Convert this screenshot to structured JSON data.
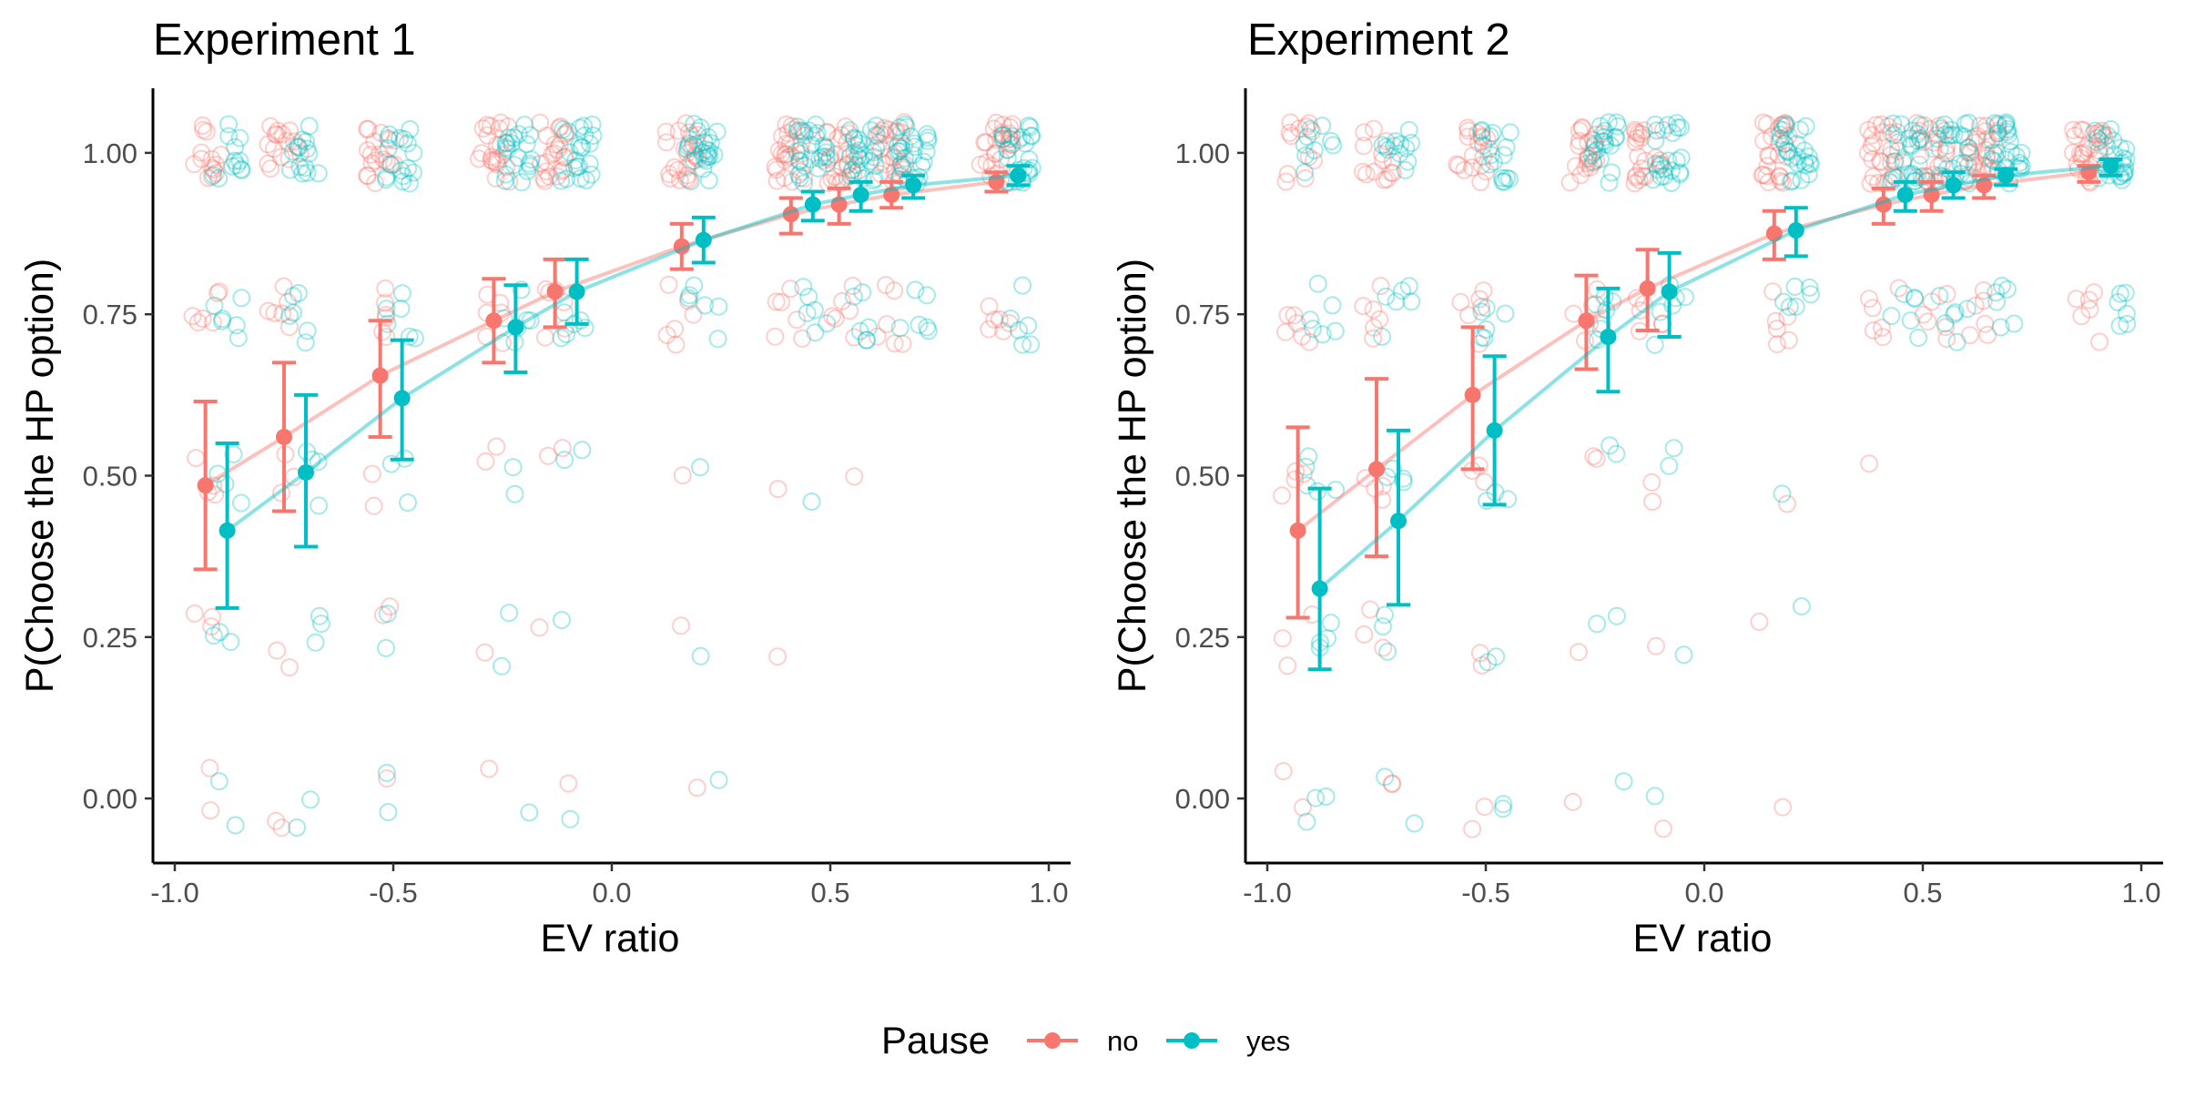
{
  "legend": {
    "title": "Pause",
    "items": [
      {
        "label": "no",
        "color": "#F8766D"
      },
      {
        "label": "yes",
        "color": "#00BFC4"
      }
    ]
  },
  "chart_data": [
    {
      "type": "line",
      "title": "Experiment 1",
      "xlabel": "EV ratio",
      "ylabel": "P(Choose the HP option)",
      "xlim": [
        -1.05,
        1.05
      ],
      "ylim": [
        -0.1,
        1.1
      ],
      "x_ticks": [
        -1.0,
        -0.5,
        0.0,
        0.5,
        1.0
      ],
      "x_tick_labels": [
        "-1.0",
        "-0.5",
        "0.0",
        "0.5",
        "1.0"
      ],
      "y_ticks": [
        0.0,
        0.25,
        0.5,
        0.75,
        1.0
      ],
      "y_tick_labels": [
        "0.00",
        "0.25",
        "0.50",
        "0.75",
        "1.00"
      ],
      "grid": false,
      "legend_position": "bottom",
      "series": [
        {
          "name": "no",
          "color": "#F8766D",
          "x": [
            -0.93,
            -0.75,
            -0.53,
            -0.27,
            -0.13,
            0.16,
            0.41,
            0.52,
            0.64,
            0.88
          ],
          "y": [
            0.485,
            0.56,
            0.655,
            0.74,
            0.785,
            0.855,
            0.905,
            0.92,
            0.935,
            0.955
          ],
          "ymin": [
            0.355,
            0.445,
            0.56,
            0.675,
            0.73,
            0.82,
            0.875,
            0.89,
            0.915,
            0.94
          ],
          "ymax": [
            0.615,
            0.675,
            0.74,
            0.805,
            0.835,
            0.89,
            0.93,
            0.945,
            0.955,
            0.97
          ]
        },
        {
          "name": "yes",
          "color": "#00BFC4",
          "x": [
            -0.88,
            -0.7,
            -0.48,
            -0.22,
            -0.08,
            0.21,
            0.46,
            0.57,
            0.69,
            0.93
          ],
          "y": [
            0.415,
            0.505,
            0.62,
            0.73,
            0.785,
            0.865,
            0.92,
            0.935,
            0.95,
            0.965
          ],
          "ymin": [
            0.295,
            0.39,
            0.525,
            0.66,
            0.735,
            0.83,
            0.895,
            0.91,
            0.93,
            0.95
          ],
          "ymax": [
            0.55,
            0.625,
            0.71,
            0.795,
            0.835,
            0.9,
            0.94,
            0.955,
            0.965,
            0.98
          ]
        }
      ]
    },
    {
      "type": "line",
      "title": "Experiment 2",
      "xlabel": "EV ratio",
      "ylabel": "P(Choose the HP option)",
      "xlim": [
        -1.05,
        1.05
      ],
      "ylim": [
        -0.1,
        1.1
      ],
      "x_ticks": [
        -1.0,
        -0.5,
        0.0,
        0.5,
        1.0
      ],
      "x_tick_labels": [
        "-1.0",
        "-0.5",
        "0.0",
        "0.5",
        "1.0"
      ],
      "y_ticks": [
        0.0,
        0.25,
        0.5,
        0.75,
        1.0
      ],
      "y_tick_labels": [
        "0.00",
        "0.25",
        "0.50",
        "0.75",
        "1.00"
      ],
      "grid": false,
      "legend_position": "bottom",
      "series": [
        {
          "name": "no",
          "color": "#F8766D",
          "x": [
            -0.93,
            -0.75,
            -0.53,
            -0.27,
            -0.13,
            0.16,
            0.41,
            0.52,
            0.64,
            0.88
          ],
          "y": [
            0.415,
            0.51,
            0.625,
            0.74,
            0.79,
            0.875,
            0.92,
            0.935,
            0.95,
            0.97
          ],
          "ymin": [
            0.28,
            0.375,
            0.51,
            0.665,
            0.725,
            0.835,
            0.89,
            0.91,
            0.93,
            0.955
          ],
          "ymax": [
            0.575,
            0.65,
            0.73,
            0.81,
            0.85,
            0.91,
            0.945,
            0.955,
            0.965,
            0.98
          ]
        },
        {
          "name": "yes",
          "color": "#00BFC4",
          "x": [
            -0.88,
            -0.7,
            -0.48,
            -0.22,
            -0.08,
            0.21,
            0.46,
            0.57,
            0.69,
            0.93
          ],
          "y": [
            0.325,
            0.43,
            0.57,
            0.715,
            0.785,
            0.88,
            0.935,
            0.95,
            0.965,
            0.98
          ],
          "ymin": [
            0.2,
            0.3,
            0.455,
            0.63,
            0.715,
            0.84,
            0.91,
            0.93,
            0.95,
            0.965
          ],
          "ymax": [
            0.48,
            0.57,
            0.685,
            0.79,
            0.845,
            0.915,
            0.955,
            0.97,
            0.975,
            0.99
          ]
        }
      ]
    }
  ]
}
